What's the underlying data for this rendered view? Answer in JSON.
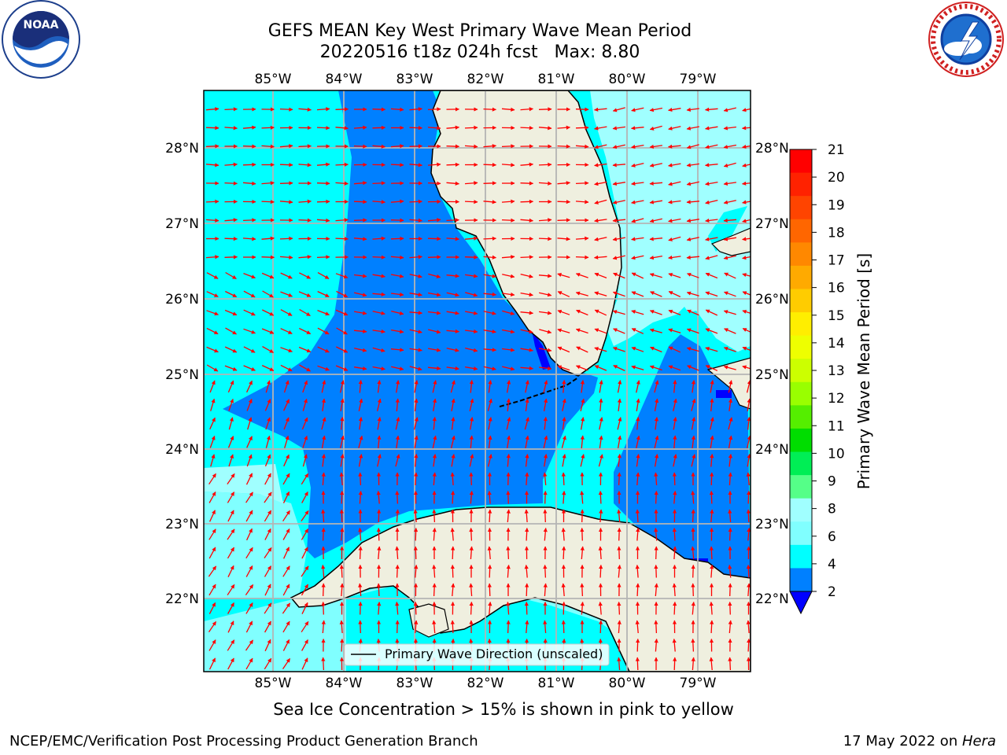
{
  "header": {
    "title_line1": "GEFS MEAN Key West Primary Wave Mean Period",
    "title_line2": "20220516 t18z 024h fcst   Max: 8.80"
  },
  "logos": {
    "left": {
      "name": "noaa-logo",
      "text": "NOAA",
      "ring_text": "NATIONAL OCEANIC AND ATMOSPHERIC ADMINISTRATION · U.S. DEPARTMENT OF COMMERCE"
    },
    "right": {
      "name": "nws-logo",
      "ring_text": "NATIONAL WEATHER SERVICE"
    }
  },
  "map": {
    "lon_labels": [
      "85°W",
      "84°W",
      "83°W",
      "82°W",
      "81°W",
      "80°W",
      "79°W"
    ],
    "lat_labels": [
      "28°N",
      "27°N",
      "26°N",
      "25°N",
      "24°N",
      "23°N",
      "22°N"
    ],
    "legend_label": "Primary Wave Direction (unscaled)",
    "colors": {
      "land": "#efefdf",
      "level_2_4": "#0080ff",
      "level_4_6": "#00ffff",
      "level_6_8": "#80ffff",
      "level_8_9": "#a0ffff",
      "below_2": "#0000ff",
      "arrow": "#ff0000",
      "grid": "#b4b4b4"
    }
  },
  "colorbar": {
    "label": "Primary Wave Mean Period [s]",
    "ticks": [
      "21",
      "20",
      "19",
      "18",
      "17",
      "16",
      "15",
      "14",
      "13",
      "12",
      "11",
      "10",
      "9",
      "8",
      "6",
      "4",
      "2"
    ],
    "colors": [
      "#ff0000",
      "#ff2200",
      "#ff4400",
      "#ff6600",
      "#ff8800",
      "#ffaa00",
      "#ffcc00",
      "#ffee00",
      "#eeff00",
      "#ccff00",
      "#99ff00",
      "#55ee00",
      "#00dd00",
      "#00ee55",
      "#55ff88",
      "#a0ffff",
      "#80ffff",
      "#00ffff",
      "#0080ff"
    ],
    "extend_color": "#0000ff"
  },
  "footer": {
    "subtitle": "Sea Ice Concentration > 15% is shown in pink to yellow",
    "left": "NCEP/EMC/Verification Post Processing Product Generation Branch",
    "right_date": "17 May 2022 on ",
    "right_machine": "Hera"
  }
}
